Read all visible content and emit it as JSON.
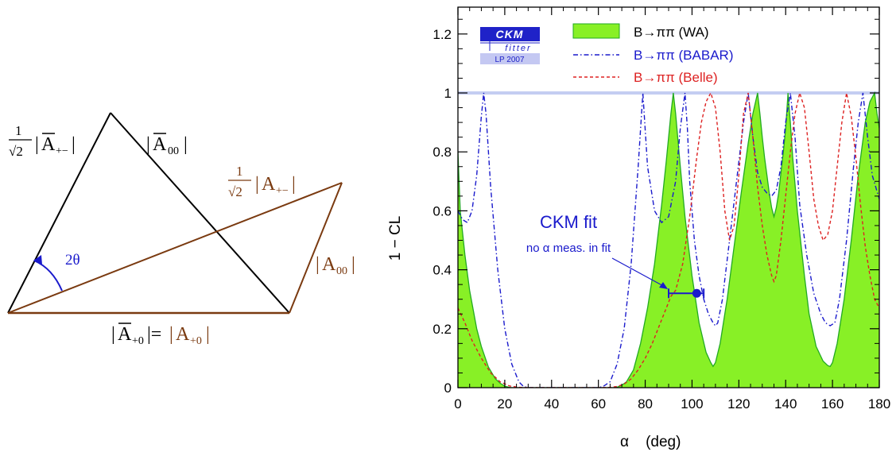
{
  "triangle": {
    "angle_label": "2θ",
    "frac_num": "1",
    "frac_den": "√2",
    "left_side": {
      "open": "|",
      "letter": "A",
      "sub": "+−",
      "close": "|"
    },
    "right_side": {
      "open": "|",
      "letter": "A",
      "sub": "00",
      "close": "|"
    },
    "brown_diag": {
      "open": "|",
      "letter": "A",
      "sub": "+−",
      "close": "|"
    },
    "brown_right": {
      "open": "|",
      "letter": "A",
      "sub": "00",
      "close": "|"
    },
    "bottom": {
      "bar_open": "|",
      "bar_letter": "A",
      "bar_sub": "+0",
      "equals": "|=",
      "plain_open": "|",
      "plain_letter": "A",
      "plain_sub": "+0",
      "plain_close": "|"
    }
  },
  "colors": {
    "black": "#000000",
    "brown": "#7a3a10",
    "blue": "#1a1acc",
    "red": "#dd2222",
    "green_fill": "#88f026",
    "green_line": "#22aa22",
    "limit_line": "#c4cdf2"
  },
  "logo": {
    "line1": "CKM",
    "line2": "fitter",
    "line3": "LP 2007"
  },
  "annotation": {
    "title": "CKM fit",
    "subtitle": "no α meas. in fit"
  },
  "chart_data": {
    "type": "line",
    "xlabel": "α    (deg)",
    "ylabel": "1 − CL",
    "xlim": [
      0,
      180
    ],
    "ylim": [
      0,
      1.3
    ],
    "x_ticks": [
      "0",
      "20",
      "40",
      "60",
      "80",
      "100",
      "120",
      "140",
      "160",
      "180"
    ],
    "y_ticks": [
      "0",
      "0.2",
      "0.4",
      "0.6",
      "0.8",
      "1",
      "1.2"
    ],
    "legend_position": "top-right",
    "series": [
      {
        "name": "B→ππ (WA)",
        "style": "filled",
        "color": "#88f026",
        "x": [
          0,
          1,
          3,
          5,
          8,
          10,
          13,
          16,
          18,
          20,
          22,
          23,
          67,
          68,
          70,
          72,
          75,
          78,
          81,
          84,
          87,
          89,
          91,
          92,
          93,
          95,
          97,
          100,
          103,
          106,
          108,
          109,
          110,
          112,
          115,
          118,
          121,
          124,
          126,
          128,
          129,
          130,
          131,
          132,
          133,
          134,
          135,
          136,
          137,
          138,
          139,
          140,
          141,
          142,
          143,
          145,
          148,
          150,
          153,
          156,
          158,
          159,
          160,
          162,
          165,
          168,
          171,
          174,
          176,
          178,
          179,
          180
        ],
        "y": [
          0.8,
          0.6,
          0.45,
          0.33,
          0.2,
          0.14,
          0.07,
          0.03,
          0.015,
          0.005,
          0.001,
          0,
          0,
          0.002,
          0.008,
          0.02,
          0.06,
          0.15,
          0.27,
          0.42,
          0.62,
          0.77,
          0.93,
          1.0,
          0.93,
          0.75,
          0.58,
          0.38,
          0.22,
          0.12,
          0.085,
          0.072,
          0.085,
          0.15,
          0.3,
          0.48,
          0.66,
          0.83,
          0.93,
          1.0,
          0.93,
          0.85,
          0.78,
          0.72,
          0.66,
          0.61,
          0.58,
          0.61,
          0.66,
          0.73,
          0.8,
          0.88,
          1.0,
          0.9,
          0.78,
          0.6,
          0.38,
          0.25,
          0.14,
          0.09,
          0.075,
          0.072,
          0.085,
          0.15,
          0.3,
          0.5,
          0.72,
          0.9,
          0.97,
          1.0,
          0.93,
          0.88
        ]
      },
      {
        "name": "B→ππ (BABAR)",
        "style": "dashdot",
        "color": "#1a1acc",
        "x": [
          0,
          2,
          4,
          6,
          8,
          10,
          11,
          12,
          14,
          17,
          20,
          23,
          26,
          28,
          30,
          60,
          62,
          65,
          68,
          71,
          74,
          77,
          79,
          81,
          84,
          87,
          90,
          93,
          95,
          97,
          98,
          99,
          101,
          103,
          105,
          107,
          109,
          110,
          111,
          113,
          116,
          119,
          122,
          124,
          126,
          128,
          130,
          132,
          134,
          136,
          138,
          140,
          142,
          144,
          146,
          149,
          152,
          155,
          157,
          159,
          160,
          161,
          163,
          166,
          169,
          171,
          173,
          175,
          177,
          180
        ],
        "y": [
          0.6,
          0.57,
          0.56,
          0.6,
          0.72,
          0.92,
          1.0,
          0.93,
          0.68,
          0.4,
          0.2,
          0.08,
          0.02,
          0.004,
          0,
          0,
          0.004,
          0.02,
          0.08,
          0.2,
          0.42,
          0.75,
          1.0,
          0.75,
          0.6,
          0.56,
          0.58,
          0.7,
          0.88,
          1.0,
          0.88,
          0.7,
          0.5,
          0.38,
          0.3,
          0.25,
          0.22,
          0.21,
          0.22,
          0.3,
          0.5,
          0.7,
          0.9,
          1.0,
          0.85,
          0.73,
          0.68,
          0.66,
          0.65,
          0.67,
          0.75,
          0.9,
          1.0,
          0.85,
          0.62,
          0.45,
          0.32,
          0.25,
          0.22,
          0.21,
          0.215,
          0.22,
          0.3,
          0.5,
          0.75,
          0.9,
          1.0,
          0.85,
          0.72,
          0.64
        ]
      },
      {
        "name": "B→ππ (Belle)",
        "style": "dashed",
        "color": "#dd2222",
        "x": [
          0,
          3,
          6,
          10,
          14,
          18,
          22,
          26,
          30,
          35,
          40,
          50,
          60,
          65,
          68,
          71,
          74,
          77,
          80,
          83,
          86,
          89,
          91,
          92,
          93,
          96,
          99,
          102,
          104,
          106,
          108,
          110,
          112,
          114,
          116,
          118,
          120,
          122,
          124,
          126,
          128,
          130,
          132,
          134,
          135,
          136,
          138,
          140,
          142,
          144,
          146,
          148,
          150,
          152,
          154,
          156,
          158,
          160,
          162,
          164,
          166,
          168,
          170,
          172,
          174,
          176,
          178,
          180
        ],
        "y": [
          0.27,
          0.22,
          0.16,
          0.1,
          0.05,
          0.02,
          0.006,
          0.001,
          0,
          0,
          0,
          0,
          0,
          0.001,
          0.004,
          0.012,
          0.03,
          0.06,
          0.1,
          0.15,
          0.21,
          0.27,
          0.31,
          0.32,
          0.33,
          0.42,
          0.58,
          0.78,
          0.9,
          0.97,
          1.0,
          0.95,
          0.8,
          0.6,
          0.5,
          0.55,
          0.72,
          0.93,
          1.0,
          0.85,
          0.68,
          0.55,
          0.45,
          0.38,
          0.36,
          0.38,
          0.5,
          0.65,
          0.8,
          0.93,
          1.0,
          0.95,
          0.8,
          0.64,
          0.55,
          0.5,
          0.52,
          0.6,
          0.75,
          0.9,
          1.0,
          0.92,
          0.78,
          0.62,
          0.48,
          0.38,
          0.3,
          0.27
        ]
      }
    ],
    "fit_point": {
      "value": 102,
      "error_low": 90,
      "error_high": 105,
      "y": 0.32
    },
    "limit_line_y": 1.0
  }
}
